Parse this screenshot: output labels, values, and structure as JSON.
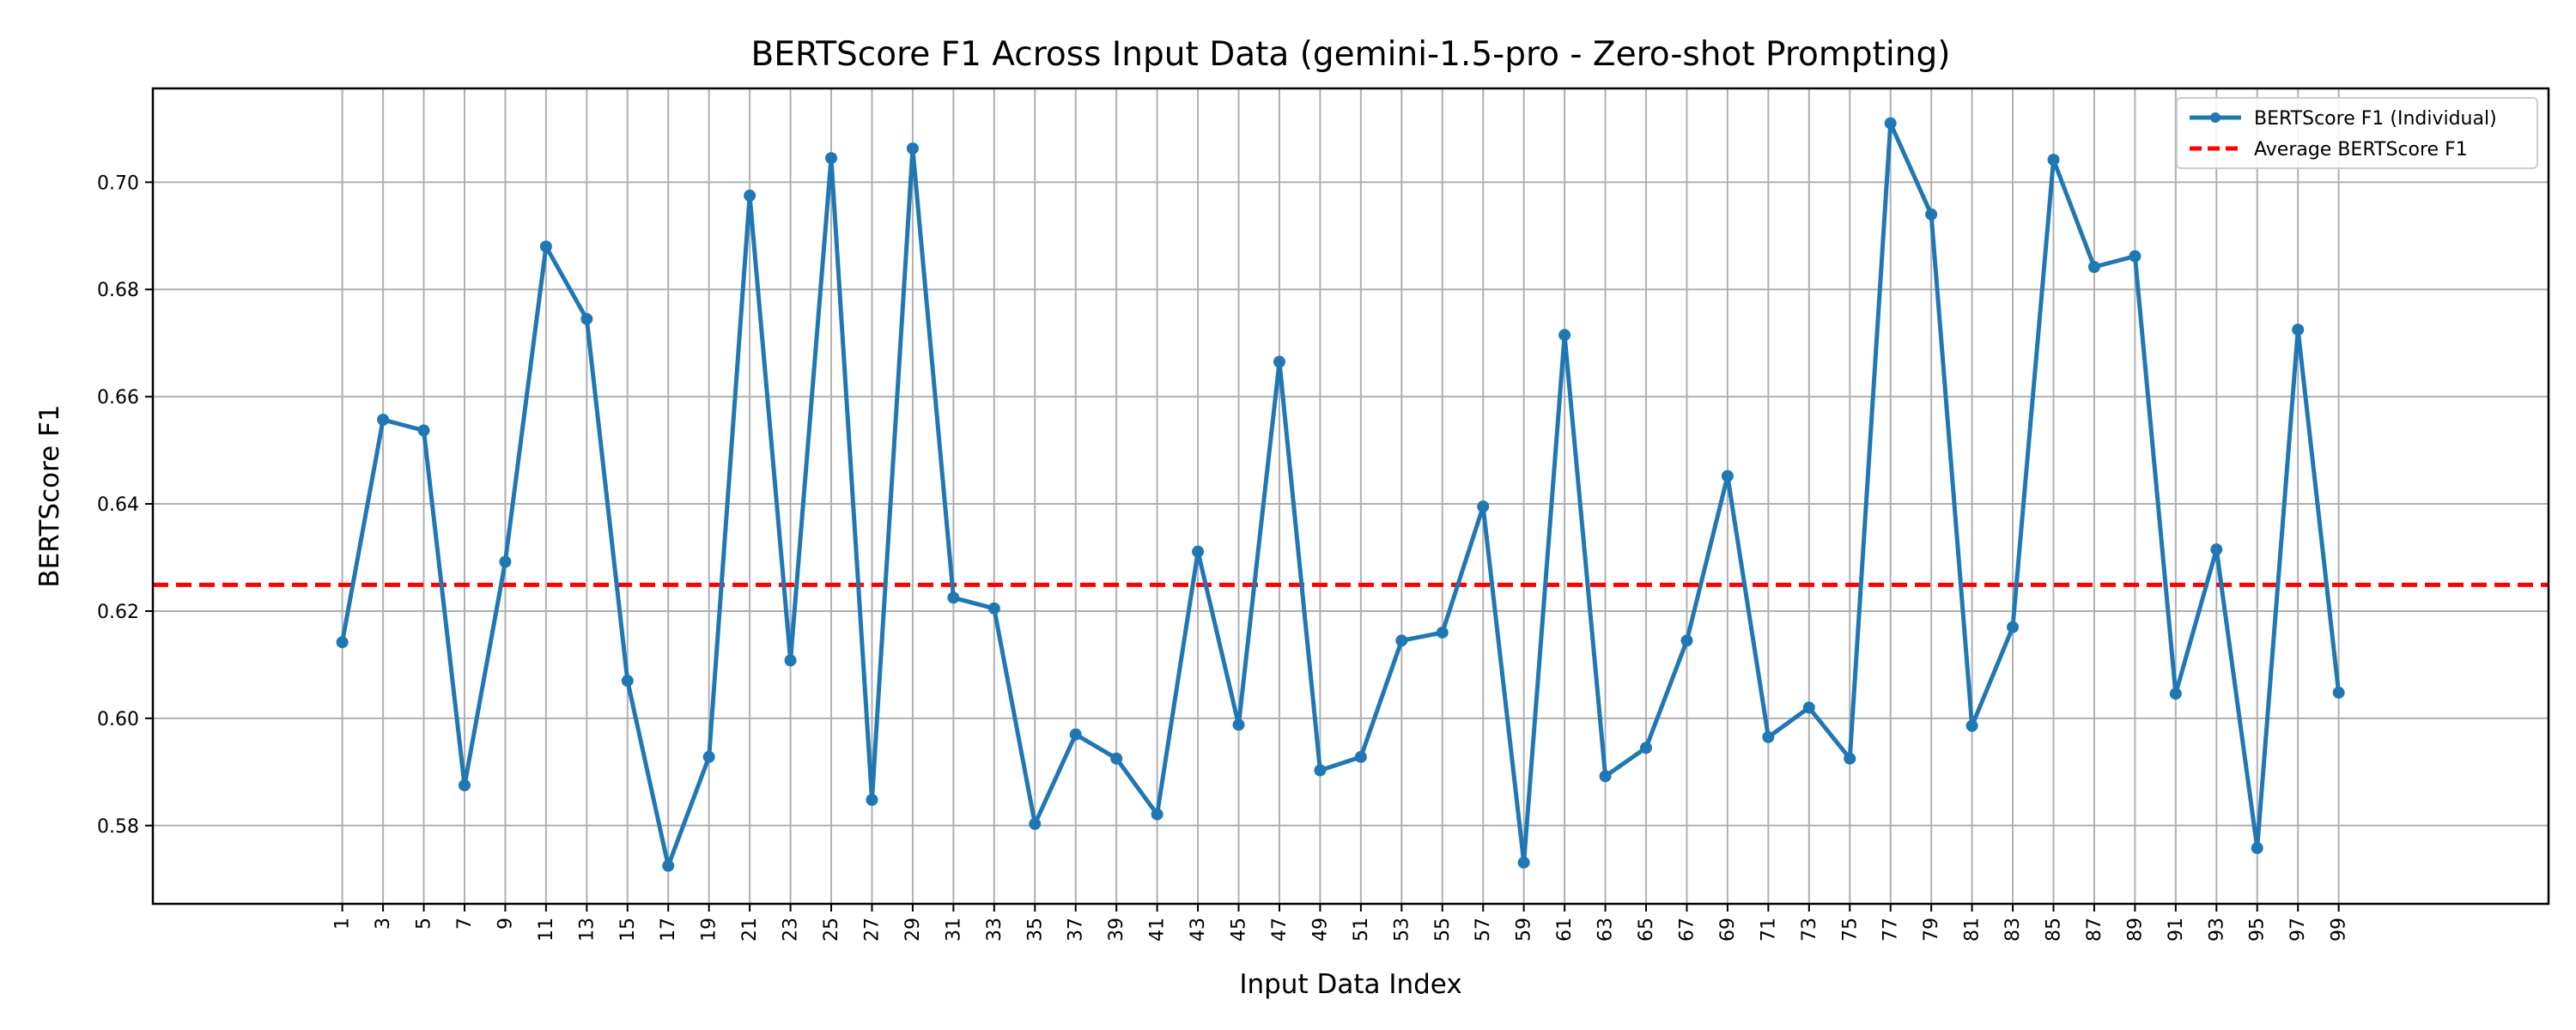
{
  "chart_data": {
    "type": "line",
    "title": "BERTScore F1 Across Input Data (gemini-1.5-pro - Zero-shot Prompting)",
    "xlabel": "Input Data Index",
    "ylabel": "BERTScore F1",
    "x": [
      1,
      3,
      5,
      7,
      9,
      11,
      13,
      15,
      17,
      19,
      21,
      23,
      25,
      27,
      29,
      31,
      33,
      35,
      37,
      39,
      41,
      43,
      45,
      47,
      49,
      51,
      53,
      55,
      57,
      59,
      61,
      63,
      65,
      67,
      69,
      71,
      73,
      75,
      77,
      79,
      81,
      83,
      85,
      87,
      89,
      91,
      93,
      95,
      97,
      99
    ],
    "xlim": [
      -8.3,
      109.3
    ],
    "ylim": [
      0.5654,
      0.7175
    ],
    "yticks": [
      0.58,
      0.6,
      0.62,
      0.64,
      0.66,
      0.68,
      0.7
    ],
    "ytick_labels": [
      "0.58",
      "0.60",
      "0.62",
      "0.64",
      "0.66",
      "0.68",
      "0.70"
    ],
    "grid": true,
    "legend_position": "top-right",
    "series": [
      {
        "name": "BERTScore F1 (Individual)",
        "color": "#1f77b4",
        "style": "solid-with-markers",
        "values": [
          0.6142,
          0.6557,
          0.6537,
          0.5875,
          0.6292,
          0.688,
          0.6745,
          0.607,
          0.5725,
          0.5928,
          0.6975,
          0.6108,
          0.7045,
          0.5848,
          0.7063,
          0.6225,
          0.6205,
          0.5803,
          0.597,
          0.5925,
          0.5821,
          0.6311,
          0.5988,
          0.6665,
          0.5903,
          0.5928,
          0.6145,
          0.616,
          0.6395,
          0.5731,
          0.6715,
          0.5892,
          0.5945,
          0.6145,
          0.6452,
          0.5965,
          0.602,
          0.5925,
          0.711,
          0.694,
          0.5986,
          0.617,
          0.7042,
          0.6842,
          0.6862,
          0.6046,
          0.6315,
          0.5758,
          0.6725,
          0.6048
        ]
      }
    ],
    "reference_lines": [
      {
        "name": "Average BERTScore F1",
        "color": "#ff0000",
        "style": "dashed",
        "value": 0.6249
      }
    ]
  }
}
